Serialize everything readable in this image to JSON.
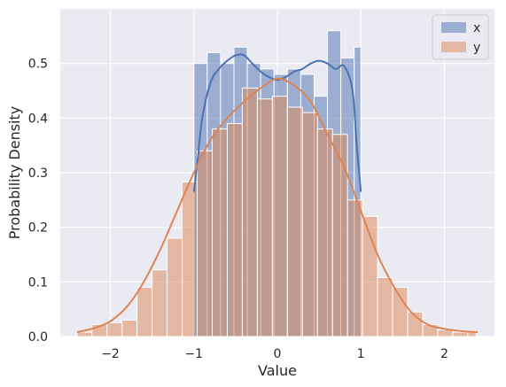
{
  "chart_data": {
    "type": "histogram",
    "title": "",
    "xlabel": "Value",
    "ylabel": "Probability Density",
    "xlim": [
      -2.6,
      2.6
    ],
    "ylim": [
      0,
      0.6
    ],
    "xticks": [
      -2,
      -1,
      0,
      1,
      2
    ],
    "xtick_labels": [
      "−2",
      "−1",
      "0",
      "1",
      "2"
    ],
    "yticks": [
      0.0,
      0.1,
      0.2,
      0.3,
      0.4,
      0.5
    ],
    "ytick_labels": [
      "0.0",
      "0.1",
      "0.2",
      "0.3",
      "0.4",
      "0.5"
    ],
    "grid": true,
    "legend_position": "top-right",
    "background_color": "#eaeaf2",
    "series": [
      {
        "name": "x",
        "color": "#4c72b0",
        "bin_edges": [
          -1.0,
          -0.84,
          -0.68,
          -0.52,
          -0.36,
          -0.2,
          -0.04,
          0.12,
          0.28,
          0.44,
          0.6,
          0.76,
          0.92,
          1.0
        ],
        "values": [
          0.5,
          0.52,
          0.5,
          0.53,
          0.5,
          0.49,
          0.48,
          0.49,
          0.48,
          0.44,
          0.56,
          0.51,
          0.53
        ],
        "kde_x": [
          -1.0,
          -0.95,
          -0.9,
          -0.8,
          -0.7,
          -0.6,
          -0.5,
          -0.4,
          -0.3,
          -0.2,
          -0.1,
          0.0,
          0.1,
          0.2,
          0.3,
          0.4,
          0.5,
          0.6,
          0.7,
          0.8,
          0.9,
          0.95,
          1.0
        ],
        "kde_y": [
          0.265,
          0.33,
          0.4,
          0.465,
          0.49,
          0.505,
          0.515,
          0.515,
          0.5,
          0.485,
          0.475,
          0.47,
          0.475,
          0.485,
          0.49,
          0.5,
          0.505,
          0.5,
          0.49,
          0.495,
          0.45,
          0.35,
          0.265
        ]
      },
      {
        "name": "y",
        "color": "#dd8452",
        "bin_edges": [
          -2.4,
          -2.22,
          -2.04,
          -1.86,
          -1.68,
          -1.5,
          -1.32,
          -1.14,
          -0.96,
          -0.78,
          -0.6,
          -0.42,
          -0.24,
          -0.06,
          0.12,
          0.3,
          0.48,
          0.66,
          0.84,
          1.02,
          1.2,
          1.38,
          1.56,
          1.74,
          1.92,
          2.1,
          2.28,
          2.38
        ],
        "values": [
          0.008,
          0.022,
          0.025,
          0.03,
          0.09,
          0.122,
          0.18,
          0.283,
          0.34,
          0.38,
          0.39,
          0.455,
          0.435,
          0.44,
          0.42,
          0.41,
          0.38,
          0.37,
          0.25,
          0.22,
          0.108,
          0.09,
          0.045,
          0.022,
          0.012,
          0.008,
          0.008
        ],
        "kde_x": [
          -2.4,
          -2.2,
          -2.0,
          -1.8,
          -1.6,
          -1.4,
          -1.2,
          -1.0,
          -0.8,
          -0.6,
          -0.4,
          -0.2,
          0.0,
          0.2,
          0.4,
          0.6,
          0.8,
          1.0,
          1.2,
          1.4,
          1.6,
          1.8,
          2.0,
          2.2,
          2.4
        ],
        "kde_y": [
          0.008,
          0.015,
          0.028,
          0.055,
          0.1,
          0.16,
          0.23,
          0.3,
          0.36,
          0.4,
          0.43,
          0.455,
          0.472,
          0.46,
          0.43,
          0.37,
          0.31,
          0.23,
          0.15,
          0.09,
          0.045,
          0.022,
          0.014,
          0.01,
          0.008
        ]
      }
    ]
  }
}
